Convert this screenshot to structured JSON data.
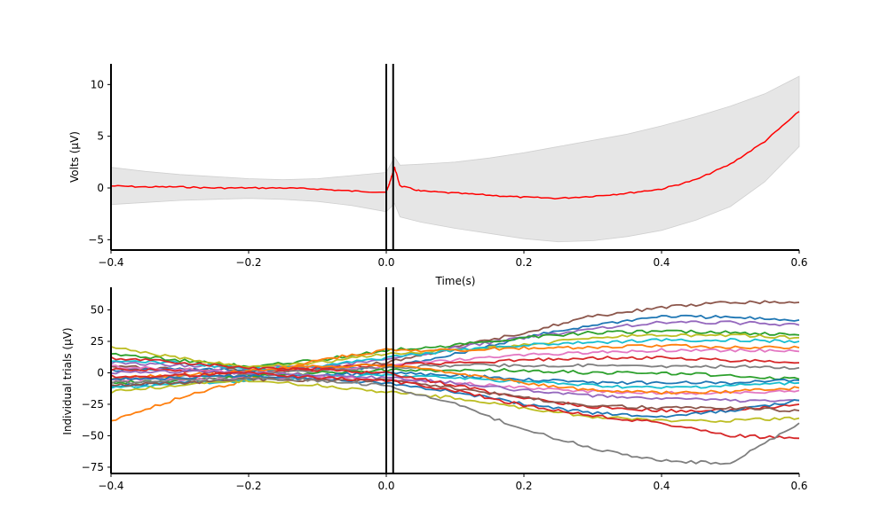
{
  "chart_data": [
    {
      "type": "line",
      "panel": "average",
      "xlabel": "Time(s)",
      "ylabel": "Volts (μV)",
      "xlim": [
        -0.4,
        0.6
      ],
      "ylim": [
        -6,
        12
      ],
      "xticks": [
        -0.4,
        -0.2,
        0.0,
        0.2,
        0.4,
        0.6
      ],
      "xtick_labels": [
        "−0.4",
        "−0.2",
        "0.0",
        "0.2",
        "0.4",
        "0.6"
      ],
      "yticks": [
        -5,
        0,
        5,
        10
      ],
      "ytick_labels": [
        "−5",
        "0",
        "5",
        "10"
      ],
      "vlines": [
        0.0,
        0.01
      ],
      "grid": false,
      "series": [
        {
          "role": "mean",
          "color": "#ff0000",
          "x": [
            -0.4,
            -0.35,
            -0.3,
            -0.25,
            -0.2,
            -0.15,
            -0.1,
            -0.05,
            0.0,
            0.005,
            0.012,
            0.02,
            0.05,
            0.1,
            0.15,
            0.2,
            0.25,
            0.3,
            0.35,
            0.4,
            0.45,
            0.5,
            0.55,
            0.6
          ],
          "y": [
            0.2,
            0.1,
            0.1,
            0.0,
            0.0,
            0.0,
            -0.1,
            -0.3,
            -0.4,
            0.5,
            2.0,
            0.2,
            -0.3,
            -0.5,
            -0.7,
            -0.9,
            -1.0,
            -0.8,
            -0.5,
            -0.1,
            0.8,
            2.3,
            4.5,
            7.4
          ]
        },
        {
          "role": "band",
          "color": "#e6e6e6",
          "x": [
            -0.4,
            -0.35,
            -0.3,
            -0.25,
            -0.2,
            -0.15,
            -0.1,
            -0.05,
            0.0,
            0.012,
            0.02,
            0.05,
            0.1,
            0.15,
            0.2,
            0.25,
            0.3,
            0.35,
            0.4,
            0.45,
            0.5,
            0.55,
            0.6
          ],
          "upper": [
            2.0,
            1.6,
            1.3,
            1.1,
            0.9,
            0.8,
            0.9,
            1.2,
            1.5,
            3.0,
            2.2,
            2.3,
            2.5,
            2.9,
            3.4,
            4.0,
            4.6,
            5.2,
            6.0,
            6.9,
            7.9,
            9.1,
            10.8
          ],
          "lower": [
            -1.6,
            -1.4,
            -1.2,
            -1.1,
            -1.0,
            -1.1,
            -1.3,
            -1.7,
            -2.3,
            -1.5,
            -2.8,
            -3.3,
            -3.9,
            -4.4,
            -4.9,
            -5.2,
            -5.1,
            -4.7,
            -4.1,
            -3.1,
            -1.8,
            0.6,
            4.0
          ]
        }
      ]
    },
    {
      "type": "line",
      "panel": "trials",
      "xlabel": "",
      "ylabel": "Individual trials (μV)",
      "xlim": [
        -0.4,
        0.6
      ],
      "ylim": [
        -80,
        68
      ],
      "xticks": [
        -0.4,
        -0.2,
        0.0,
        0.2,
        0.4,
        0.6
      ],
      "xtick_labels": [
        "−0.4",
        "−0.2",
        "0.0",
        "0.2",
        "0.4",
        "0.6"
      ],
      "yticks": [
        -75,
        -50,
        -25,
        0,
        25,
        50
      ],
      "ytick_labels": [
        "−75",
        "−50",
        "−25",
        "0",
        "25",
        "50"
      ],
      "vlines": [
        0.0,
        0.01
      ],
      "grid": false,
      "x": [
        -0.4,
        -0.3,
        -0.2,
        -0.1,
        0.0,
        0.1,
        0.2,
        0.3,
        0.4,
        0.5,
        0.6
      ],
      "series": [
        {
          "color": "#8c564b",
          "values": [
            5,
            3,
            2,
            4,
            8,
            20,
            32,
            45,
            52,
            56,
            56
          ]
        },
        {
          "color": "#1f77b4",
          "values": [
            2,
            3,
            2,
            3,
            4,
            15,
            28,
            38,
            45,
            44,
            42
          ]
        },
        {
          "color": "#9467bd",
          "values": [
            8,
            6,
            4,
            5,
            10,
            20,
            28,
            35,
            40,
            40,
            38
          ]
        },
        {
          "color": "#2ca02c",
          "values": [
            15,
            10,
            5,
            10,
            18,
            22,
            28,
            32,
            33,
            32,
            30
          ]
        },
        {
          "color": "#bcbd22",
          "values": [
            20,
            12,
            5,
            8,
            15,
            18,
            22,
            28,
            30,
            30,
            28
          ]
        },
        {
          "color": "#17becf",
          "values": [
            10,
            8,
            3,
            5,
            12,
            18,
            22,
            24,
            26,
            26,
            25
          ]
        },
        {
          "color": "#ff7f0e",
          "values": [
            -38,
            -20,
            -5,
            10,
            18,
            18,
            20,
            20,
            22,
            20,
            20
          ]
        },
        {
          "color": "#e377c2",
          "values": [
            5,
            3,
            0,
            2,
            5,
            10,
            14,
            16,
            18,
            18,
            17
          ]
        },
        {
          "color": "#d62728",
          "values": [
            3,
            2,
            -1,
            4,
            6,
            8,
            10,
            12,
            12,
            10,
            8
          ]
        },
        {
          "color": "#7f7f7f",
          "values": [
            -5,
            -3,
            -2,
            2,
            4,
            6,
            6,
            6,
            5,
            5,
            4
          ]
        },
        {
          "color": "#2ca02c",
          "values": [
            -8,
            -6,
            -3,
            0,
            2,
            2,
            2,
            0,
            0,
            -2,
            -5
          ]
        },
        {
          "color": "#1f77b4",
          "values": [
            -10,
            -8,
            -5,
            -2,
            0,
            -2,
            -5,
            -8,
            -8,
            -8,
            -6
          ]
        },
        {
          "color": "#17becf",
          "values": [
            -12,
            -9,
            -6,
            -3,
            -2,
            -4,
            -7,
            -10,
            -12,
            -10,
            -8
          ]
        },
        {
          "color": "#e377c2",
          "values": [
            -6,
            -5,
            -4,
            -4,
            -5,
            -8,
            -12,
            -15,
            -16,
            -16,
            -14
          ]
        },
        {
          "color": "#ff7f0e",
          "values": [
            -4,
            -2,
            2,
            5,
            6,
            0,
            -8,
            -14,
            -16,
            -15,
            -12
          ]
        },
        {
          "color": "#9467bd",
          "values": [
            0,
            1,
            0,
            -2,
            -4,
            -8,
            -14,
            -18,
            -20,
            -22,
            -22
          ]
        },
        {
          "color": "#d62728",
          "values": [
            12,
            8,
            4,
            2,
            0,
            -10,
            -20,
            -27,
            -30,
            -30,
            -25
          ]
        },
        {
          "color": "#bcbd22",
          "values": [
            -15,
            -10,
            -6,
            -10,
            -15,
            -20,
            -28,
            -35,
            -38,
            -38,
            -36
          ]
        },
        {
          "color": "#1f77b4",
          "values": [
            -5,
            -4,
            -2,
            -5,
            -8,
            -15,
            -25,
            -32,
            -35,
            -30,
            -22
          ]
        },
        {
          "color": "#8c564b",
          "values": [
            -10,
            -8,
            -5,
            -6,
            -6,
            -12,
            -20,
            -26,
            -28,
            -28,
            -30
          ]
        },
        {
          "color": "#d62728",
          "values": [
            -3,
            -2,
            0,
            -4,
            -6,
            -14,
            -26,
            -34,
            -40,
            -50,
            -52
          ]
        },
        {
          "color": "#7f7f7f",
          "values": [
            -8,
            -6,
            -4,
            -6,
            -10,
            -25,
            -45,
            -60,
            -70,
            -72,
            -40
          ]
        }
      ]
    }
  ]
}
